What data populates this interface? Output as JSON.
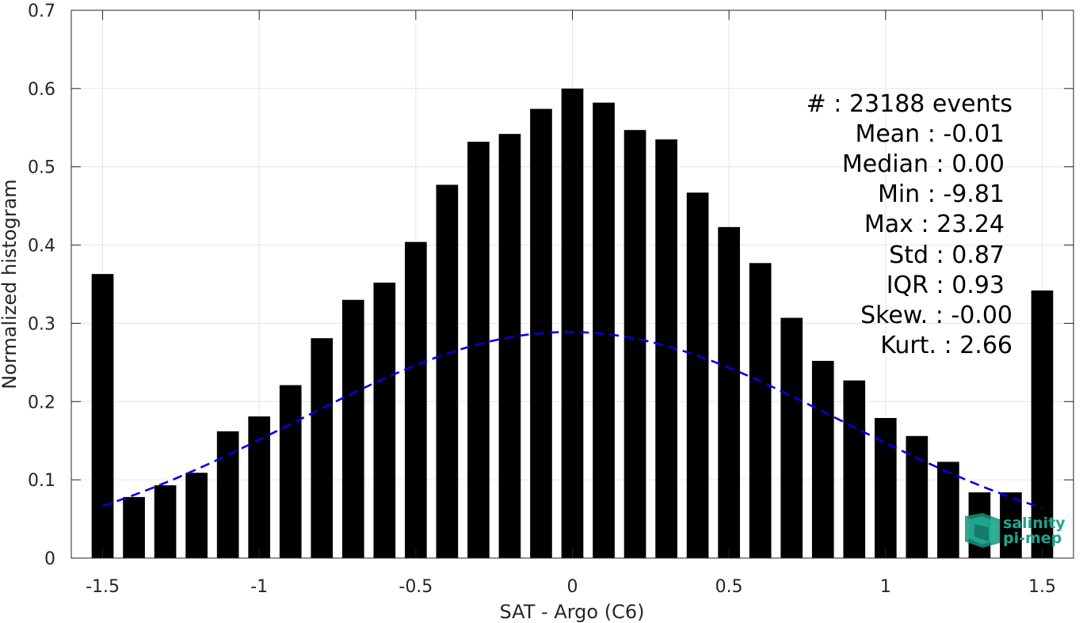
{
  "chart_data": {
    "type": "bar",
    "xlabel": "SAT - Argo (C6)",
    "ylabel": "Normalized histogram",
    "xlim": [
      -1.6,
      1.6
    ],
    "ylim": [
      0,
      0.7
    ],
    "xticks": [
      -1.5,
      -1,
      -0.5,
      0,
      0.5,
      1,
      1.5
    ],
    "xtick_labels": [
      "-1.5",
      "-1",
      "-0.5",
      "0",
      "0.5",
      "1",
      "1.5"
    ],
    "yticks": [
      0,
      0.1,
      0.2,
      0.3,
      0.4,
      0.5,
      0.6,
      0.7
    ],
    "ytick_labels": [
      "0",
      "0.1",
      "0.2",
      "0.3",
      "0.4",
      "0.5",
      "0.6",
      "0.7"
    ],
    "grid": true,
    "bar_color": "#000000",
    "bars": {
      "x": [
        -1.5,
        -1.4,
        -1.3,
        -1.2,
        -1.1,
        -1.0,
        -0.9,
        -0.8,
        -0.7,
        -0.6,
        -0.5,
        -0.4,
        -0.3,
        -0.2,
        -0.1,
        0.0,
        0.1,
        0.2,
        0.3,
        0.4,
        0.5,
        0.6,
        0.7,
        0.8,
        0.9,
        1.0,
        1.1,
        1.2,
        1.3,
        1.4,
        1.5
      ],
      "values": [
        0.363,
        0.078,
        0.093,
        0.109,
        0.162,
        0.181,
        0.221,
        0.281,
        0.33,
        0.352,
        0.404,
        0.477,
        0.532,
        0.542,
        0.574,
        0.6,
        0.582,
        0.547,
        0.535,
        0.467,
        0.423,
        0.377,
        0.307,
        0.252,
        0.227,
        0.179,
        0.156,
        0.123,
        0.084,
        0.084,
        0.342
      ]
    },
    "fit_curve": {
      "style": "dashed",
      "color": "#0000e6",
      "mean": -0.01,
      "std": 0.87,
      "x_range": [
        -1.5,
        1.5
      ]
    },
    "stats_lines": [
      "#  : 23188 events",
      "Mean : -0.01",
      "Median : 0.00",
      "Min : -9.81",
      "Max : 23.24",
      "Std : 0.87",
      "IQR : 0.93",
      "Skew. : -0.00",
      "Kurt. : 2.66"
    ]
  },
  "logo": {
    "line1": "salinity",
    "line2": "pi-mep",
    "color": "#1fa58e"
  }
}
